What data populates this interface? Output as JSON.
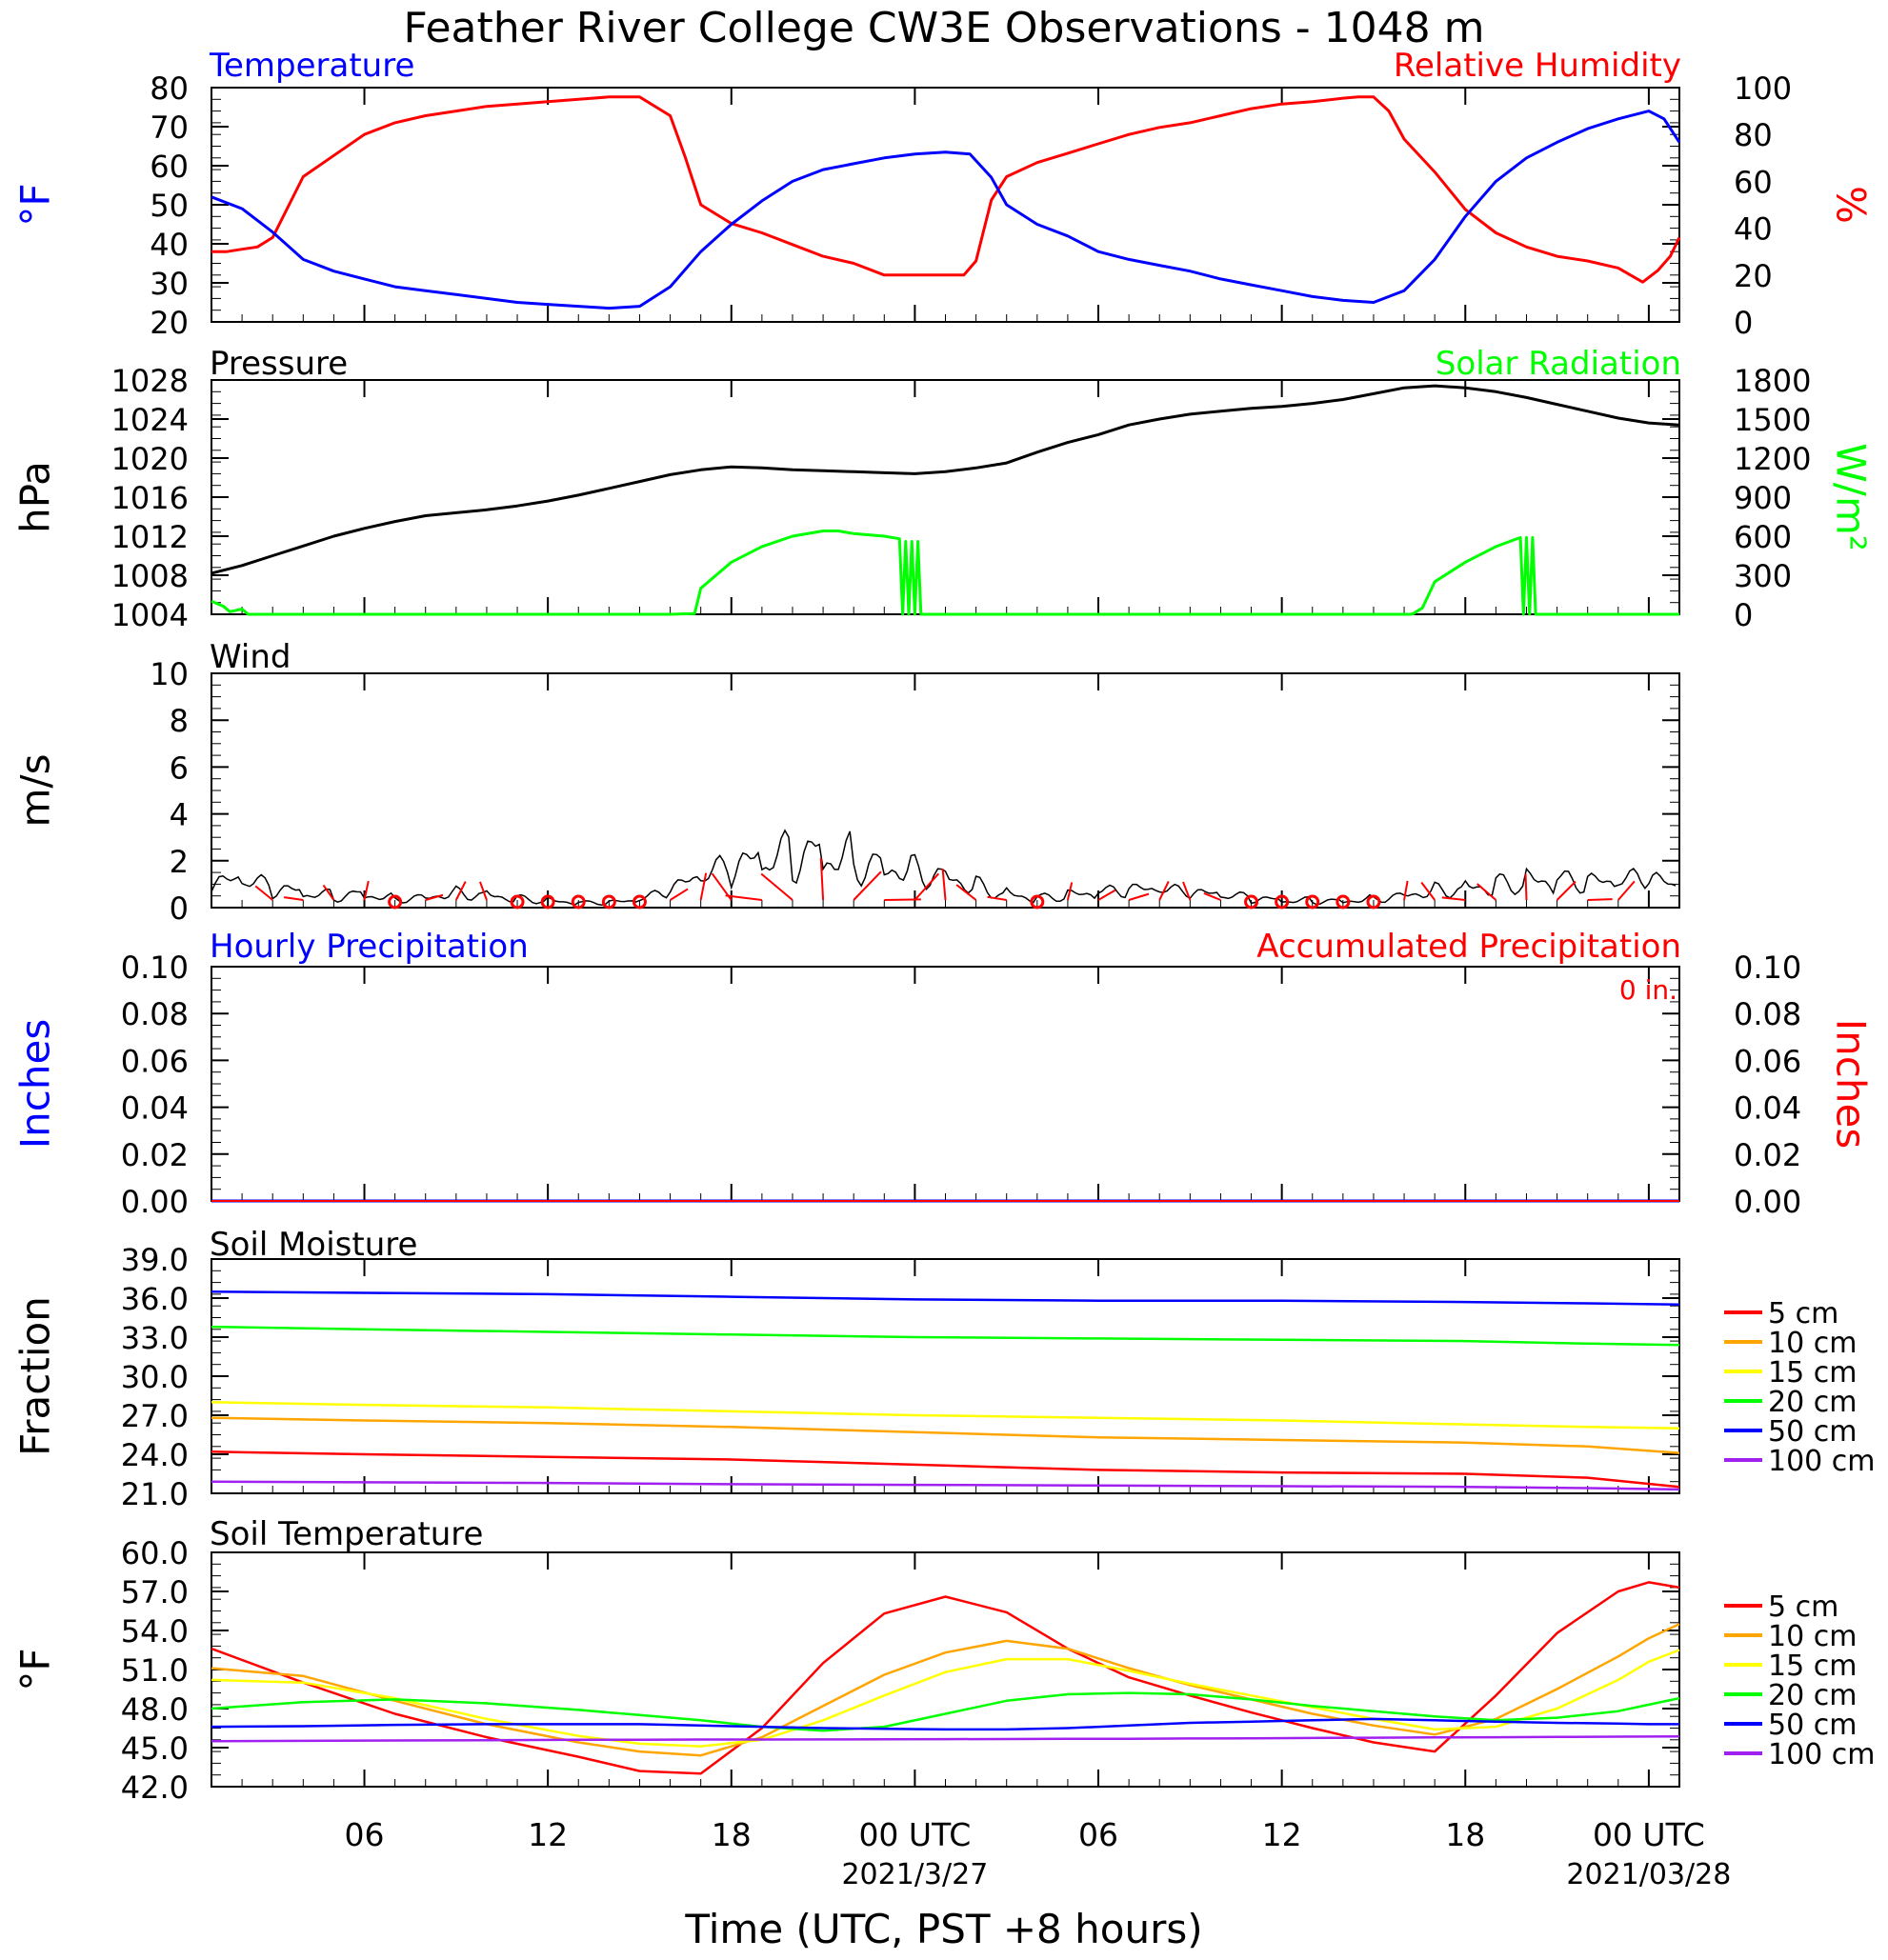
{
  "title": "Feather River College CW3E Observations - 1048 m",
  "xlabel": "Time (UTC, PST +8 hours)",
  "x_ticks": [
    "06",
    "12",
    "18",
    "00 UTC",
    "06",
    "12",
    "18",
    "00 UTC"
  ],
  "x_tick_hours": [
    6,
    12,
    18,
    24,
    30,
    36,
    42,
    48
  ],
  "x_dates": [
    "2021/3/27",
    "2021/03/28"
  ],
  "x_range_hours": [
    1,
    49
  ],
  "colors": {
    "temperature": "#0000ff",
    "humidity": "#ff0000",
    "pressure": "#000000",
    "solar": "#00ff00",
    "wind": "#000000",
    "wind_barb": "#ff0000",
    "hourly_precip": "#0000ff",
    "accum_precip": "#ff0000",
    "soil": {
      "5 cm": "#ff0000",
      "10 cm": "#ffa500",
      "15 cm": "#ffff00",
      "20 cm": "#00ff00",
      "50 cm": "#0000ff",
      "100 cm": "#a020f0"
    }
  },
  "panels": {
    "temp": {
      "left_title": "Temperature",
      "right_title": "Relative Humidity",
      "left_unit": "°F",
      "right_unit": "%",
      "left_ticks": [
        "20",
        "30",
        "40",
        "50",
        "60",
        "70",
        "80"
      ],
      "right_ticks": [
        "0",
        "20",
        "40",
        "60",
        "80",
        "100"
      ]
    },
    "pres": {
      "left_title": "Pressure",
      "right_title": "Solar Radiation",
      "left_unit": "hPa",
      "right_unit": "W/m²",
      "left_ticks": [
        "1004",
        "1008",
        "1012",
        "1016",
        "1020",
        "1024",
        "1028"
      ],
      "right_ticks": [
        "0",
        "300",
        "600",
        "900",
        "1200",
        "1500",
        "1800"
      ]
    },
    "wind": {
      "left_title": "Wind",
      "left_unit": "m/s",
      "left_ticks": [
        "0",
        "2",
        "4",
        "6",
        "8",
        "10"
      ]
    },
    "precip": {
      "left_title": "Hourly Precipitation",
      "right_title": "Accumulated Precipitation",
      "total_label": "0 in.",
      "left_unit": "Inches",
      "right_unit": "Inches",
      "left_ticks": [
        "0.00",
        "0.02",
        "0.04",
        "0.06",
        "0.08",
        "0.10"
      ],
      "right_ticks": [
        "0.00",
        "0.02",
        "0.04",
        "0.06",
        "0.08",
        "0.10"
      ]
    },
    "soilm": {
      "left_title": "Soil Moisture",
      "left_unit": "Fraction",
      "left_ticks": [
        "21.0",
        "24.0",
        "27.0",
        "30.0",
        "33.0",
        "36.0",
        "39.0"
      ],
      "legend": [
        "5 cm",
        "10 cm",
        "15 cm",
        "20 cm",
        "50 cm",
        "100 cm"
      ]
    },
    "soilt": {
      "left_title": "Soil Temperature",
      "left_unit": "°F",
      "left_ticks": [
        "42.0",
        "45.0",
        "48.0",
        "51.0",
        "54.0",
        "57.0",
        "60.0"
      ],
      "legend": [
        "5 cm",
        "10 cm",
        "15 cm",
        "20 cm",
        "50 cm",
        "100 cm"
      ]
    }
  },
  "chart_data": [
    {
      "type": "line",
      "title": "Temperature / Relative Humidity",
      "x_unit": "hours from 2021-03-26 00 UTC",
      "ylim": [
        20,
        80
      ],
      "y2lim": [
        0,
        100
      ],
      "series": [
        {
          "name": "Temperature",
          "axis": "left",
          "unit": "°F",
          "x": [
            1,
            2,
            3,
            4,
            5,
            6,
            7,
            8,
            9,
            10,
            11,
            12,
            13,
            14,
            15,
            16,
            17,
            18,
            19,
            20,
            21,
            22,
            23,
            24,
            25,
            25.8,
            26.5,
            27,
            28,
            29,
            30,
            31,
            32,
            33,
            34,
            35,
            36,
            37,
            38,
            39,
            40,
            41,
            42,
            43,
            44,
            45,
            46,
            47,
            48,
            48.5,
            49
          ],
          "y": [
            52,
            49,
            43,
            36,
            33,
            31,
            29,
            28,
            27,
            26,
            25,
            24.5,
            24,
            23.5,
            24,
            29,
            38,
            45,
            51,
            56,
            59,
            60.5,
            62,
            63,
            63.5,
            63,
            57,
            50,
            45,
            42,
            38,
            36,
            34.5,
            33,
            31,
            29.5,
            28,
            26.5,
            25.5,
            25,
            28,
            36,
            47,
            56,
            62,
            66,
            69.5,
            72,
            74,
            72,
            66
          ]
        },
        {
          "name": "Relative Humidity",
          "axis": "right",
          "unit": "%",
          "x": [
            1,
            1.5,
            2,
            2.5,
            3,
            4,
            5,
            6,
            7,
            8,
            9,
            10,
            11,
            12,
            13,
            14,
            15,
            16,
            16.5,
            17,
            18,
            19,
            20,
            21,
            22,
            23,
            24,
            25,
            25.6,
            26,
            26.5,
            27,
            28,
            29,
            30,
            31,
            32,
            33,
            34,
            35,
            36,
            37,
            38,
            38.5,
            39,
            39.5,
            40,
            41,
            42,
            43,
            44,
            45,
            46,
            47,
            47.8,
            48.3,
            48.7,
            49
          ],
          "y": [
            30,
            30,
            31,
            32,
            36,
            62,
            71,
            80,
            85,
            88,
            90,
            92,
            93,
            94,
            95,
            96,
            96,
            88,
            70,
            50,
            42,
            38,
            33,
            28,
            25,
            20,
            20,
            20,
            20,
            26,
            52,
            62,
            68,
            72,
            76,
            80,
            83,
            85,
            88,
            91,
            93,
            94,
            95.5,
            96,
            96,
            90,
            78,
            64,
            48,
            38,
            32,
            28,
            26,
            23,
            17,
            22,
            28,
            36
          ]
        }
      ]
    },
    {
      "type": "line",
      "title": "Pressure / Solar Radiation",
      "x_unit": "hours from 2021-03-26 00 UTC",
      "ylim": [
        1004,
        1028
      ],
      "y2lim": [
        0,
        1800
      ],
      "series": [
        {
          "name": "Pressure",
          "axis": "left",
          "unit": "hPa",
          "x": [
            1,
            2,
            3,
            4,
            5,
            6,
            7,
            8,
            9,
            10,
            11,
            12,
            13,
            14,
            15,
            16,
            17,
            18,
            19,
            20,
            21,
            22,
            23,
            24,
            25,
            26,
            27,
            28,
            29,
            30,
            31,
            32,
            33,
            34,
            35,
            36,
            37,
            38,
            39,
            40,
            41,
            42,
            43,
            44,
            45,
            46,
            47,
            48,
            49
          ],
          "y": [
            1008.2,
            1009,
            1010,
            1011,
            1012,
            1012.8,
            1013.5,
            1014.1,
            1014.4,
            1014.7,
            1015.1,
            1015.6,
            1016.2,
            1016.9,
            1017.6,
            1018.3,
            1018.8,
            1019.1,
            1019,
            1018.8,
            1018.7,
            1018.6,
            1018.5,
            1018.4,
            1018.6,
            1019,
            1019.5,
            1020.6,
            1021.6,
            1022.4,
            1023.4,
            1024,
            1024.5,
            1024.8,
            1025.1,
            1025.3,
            1025.6,
            1026,
            1026.6,
            1027.2,
            1027.4,
            1027.2,
            1026.8,
            1026.2,
            1025.5,
            1024.8,
            1024.1,
            1023.6,
            1023.4
          ]
        },
        {
          "name": "Solar Radiation",
          "axis": "right",
          "unit": "W/m²",
          "x": [
            1,
            1.4,
            1.6,
            2,
            2.2,
            16,
            16.8,
            17,
            17.5,
            18,
            19,
            20,
            21,
            21.5,
            22,
            23,
            23.5,
            23.6,
            23.7,
            23.8,
            23.9,
            24,
            24.1,
            24.2,
            26,
            28,
            30,
            32,
            34,
            36,
            38,
            40,
            40.2,
            40.3,
            40.6,
            41,
            42,
            43,
            43.8,
            43.9,
            44,
            44.1,
            44.2,
            44.3,
            44.4,
            46,
            49
          ],
          "y": [
            100,
            60,
            20,
            40,
            0,
            0,
            5,
            200,
            300,
            400,
            520,
            600,
            640,
            640,
            620,
            600,
            580,
            0,
            560,
            0,
            560,
            0,
            560,
            0,
            0,
            0,
            0,
            0,
            0,
            0,
            0,
            0,
            0,
            5,
            50,
            250,
            400,
            520,
            590,
            0,
            590,
            0,
            590,
            0,
            0,
            0,
            0
          ]
        }
      ]
    },
    {
      "type": "line",
      "title": "Wind",
      "x_unit": "hours from 2021-03-26 00 UTC",
      "ylim": [
        0,
        10
      ],
      "series": [
        {
          "name": "Wind",
          "unit": "m/s",
          "x": [
            1,
            2,
            3,
            4,
            5,
            6,
            7,
            8,
            9,
            10,
            11,
            12,
            13,
            14,
            15,
            16,
            17,
            18,
            19,
            20,
            21,
            22,
            23,
            24,
            25,
            26,
            27,
            28,
            29,
            30,
            31,
            32,
            33,
            34,
            35,
            36,
            37,
            38,
            39,
            40,
            41,
            42,
            43,
            44,
            45,
            46,
            47,
            48,
            49
          ],
          "y": [
            0.9,
            1.1,
            0.8,
            0.6,
            0.5,
            0.6,
            0.4,
            0.5,
            0.7,
            0.6,
            0.4,
            0.3,
            0.2,
            0.2,
            0.3,
            0.7,
            1.2,
            1.6,
            1.9,
            2.2,
            2.3,
            2.1,
            1.9,
            1.8,
            1.5,
            1.0,
            0.6,
            0.4,
            0.5,
            0.6,
            0.7,
            0.7,
            0.6,
            0.5,
            0.4,
            0.3,
            0.3,
            0.3,
            0.4,
            0.6,
            0.8,
            0.9,
            1.0,
            1.1,
            1.1,
            1.0,
            1.0,
            1.2,
            0.7
          ]
        }
      ]
    },
    {
      "type": "line",
      "title": "Hourly Precipitation / Accumulated Precipitation",
      "x_unit": "hours from 2021-03-26 00 UTC",
      "ylim": [
        0,
        0.1
      ],
      "y2lim": [
        0,
        0.1
      ],
      "series": [
        {
          "name": "Hourly Precipitation",
          "axis": "left",
          "unit": "in",
          "x": [
            1,
            49
          ],
          "y": [
            0,
            0
          ]
        },
        {
          "name": "Accumulated Precipitation",
          "axis": "right",
          "unit": "in",
          "x": [
            1,
            49
          ],
          "y": [
            0,
            0
          ]
        }
      ]
    },
    {
      "type": "line",
      "title": "Soil Moisture",
      "x_unit": "hours from 2021-03-26 00 UTC",
      "ylim": [
        21,
        39
      ],
      "x": [
        1,
        6,
        12,
        18,
        24,
        30,
        36,
        42,
        46,
        49
      ],
      "series": [
        {
          "name": "5 cm",
          "y": [
            24.2,
            24.0,
            23.8,
            23.6,
            23.2,
            22.8,
            22.6,
            22.5,
            22.2,
            21.5
          ]
        },
        {
          "name": "10 cm",
          "y": [
            26.8,
            26.6,
            26.4,
            26.1,
            25.7,
            25.3,
            25.1,
            24.9,
            24.6,
            24.1
          ]
        },
        {
          "name": "15 cm",
          "y": [
            28.0,
            27.8,
            27.6,
            27.3,
            27.0,
            26.8,
            26.6,
            26.3,
            26.1,
            26.0
          ]
        },
        {
          "name": "20 cm",
          "y": [
            33.8,
            33.6,
            33.4,
            33.2,
            33.0,
            32.9,
            32.8,
            32.7,
            32.5,
            32.4
          ]
        },
        {
          "name": "50 cm",
          "y": [
            36.5,
            36.4,
            36.3,
            36.1,
            35.9,
            35.8,
            35.8,
            35.7,
            35.6,
            35.5
          ]
        },
        {
          "name": "100 cm",
          "y": [
            21.9,
            21.85,
            21.8,
            21.7,
            21.65,
            21.6,
            21.55,
            21.5,
            21.4,
            21.3
          ]
        }
      ]
    },
    {
      "type": "line",
      "title": "Soil Temperature",
      "x_unit": "hours from 2021-03-26 00 UTC",
      "ylim": [
        42,
        60
      ],
      "x": [
        1,
        4,
        7,
        10,
        13,
        15,
        17,
        19,
        21,
        23,
        25,
        27,
        29,
        31,
        33,
        35,
        37,
        39,
        41,
        43,
        45,
        47,
        48,
        49
      ],
      "series": [
        {
          "name": "5 cm",
          "y": [
            52.6,
            50.0,
            47.6,
            45.8,
            44.3,
            43.2,
            43.0,
            46.5,
            51.5,
            55.3,
            56.6,
            55.4,
            52.6,
            50.4,
            49.0,
            47.7,
            46.5,
            45.4,
            44.7,
            49.0,
            53.8,
            57.0,
            57.7,
            57.3
          ]
        },
        {
          "name": "10 cm",
          "y": [
            51.1,
            50.5,
            48.6,
            46.8,
            45.4,
            44.7,
            44.4,
            45.8,
            48.2,
            50.6,
            52.3,
            53.2,
            52.6,
            51.1,
            49.8,
            48.7,
            47.6,
            46.7,
            46.0,
            47.2,
            49.5,
            52.0,
            53.4,
            54.5
          ]
        },
        {
          "name": "15 cm",
          "y": [
            50.2,
            50.0,
            48.8,
            47.2,
            45.9,
            45.3,
            45.1,
            45.6,
            47.1,
            49.0,
            50.8,
            51.8,
            51.8,
            50.9,
            49.9,
            49.0,
            48.1,
            47.2,
            46.4,
            46.6,
            48.0,
            50.2,
            51.6,
            52.5
          ]
        },
        {
          "name": "20 cm",
          "y": [
            48.0,
            48.5,
            48.7,
            48.4,
            47.9,
            47.5,
            47.1,
            46.6,
            46.3,
            46.6,
            47.6,
            48.6,
            49.1,
            49.2,
            49.1,
            48.7,
            48.2,
            47.8,
            47.4,
            47.1,
            47.3,
            47.8,
            48.3,
            48.8
          ]
        },
        {
          "name": "50 cm",
          "y": [
            46.6,
            46.65,
            46.75,
            46.8,
            46.8,
            46.8,
            46.7,
            46.6,
            46.5,
            46.45,
            46.4,
            46.4,
            46.5,
            46.7,
            46.9,
            47.0,
            47.1,
            47.2,
            47.1,
            47.0,
            46.9,
            46.85,
            46.8,
            46.8
          ]
        },
        {
          "name": "100 cm",
          "y": [
            45.5,
            45.52,
            45.55,
            45.57,
            45.6,
            45.6,
            45.62,
            45.62,
            45.63,
            45.64,
            45.65,
            45.66,
            45.67,
            45.68,
            45.7,
            45.72,
            45.74,
            45.76,
            45.78,
            45.8,
            45.82,
            45.84,
            45.85,
            45.86
          ]
        }
      ]
    }
  ]
}
